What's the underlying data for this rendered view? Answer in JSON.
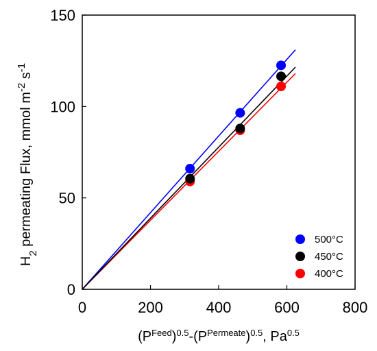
{
  "chart_data": {
    "type": "scatter",
    "xlabel": {
      "base": "(P",
      "feed_sup": "Feed",
      "mid": ")",
      "exp1": "0.5",
      "minus": "-(P",
      "perm_sup": "Permeate",
      "close": ")",
      "exp2": "0.5",
      "unit": ", Pa",
      "exp3": "0.5"
    },
    "ylabel": {
      "h": "H",
      "sub": "2",
      "rest": " permeating Flux, mmol m",
      "exp1": "-2",
      "s": " s",
      "exp2": "-1"
    },
    "xlim": [
      0,
      800
    ],
    "ylim": [
      0,
      150
    ],
    "xticks": [
      0,
      200,
      400,
      600,
      800
    ],
    "yticks": [
      0,
      50,
      100,
      150
    ],
    "grid": false,
    "legend_position": "bottom-right",
    "series": [
      {
        "name": "500°C",
        "color": "#0000ff",
        "x": [
          316,
          463,
          583
        ],
        "y": [
          66,
          96.5,
          122.5
        ],
        "fit": {
          "x": [
            0,
            625
          ],
          "y": [
            0,
            131
          ]
        }
      },
      {
        "name": "450°C",
        "color": "#000000",
        "x": [
          316,
          463,
          583
        ],
        "y": [
          60.5,
          88,
          116.5
        ],
        "fit": {
          "x": [
            0,
            625
          ],
          "y": [
            0,
            121.5
          ]
        }
      },
      {
        "name": "400°C",
        "color": "#ff0000",
        "x": [
          316,
          463,
          583
        ],
        "y": [
          59,
          87,
          111
        ],
        "fit": {
          "x": [
            0,
            625
          ],
          "y": [
            0,
            118
          ]
        }
      }
    ]
  }
}
